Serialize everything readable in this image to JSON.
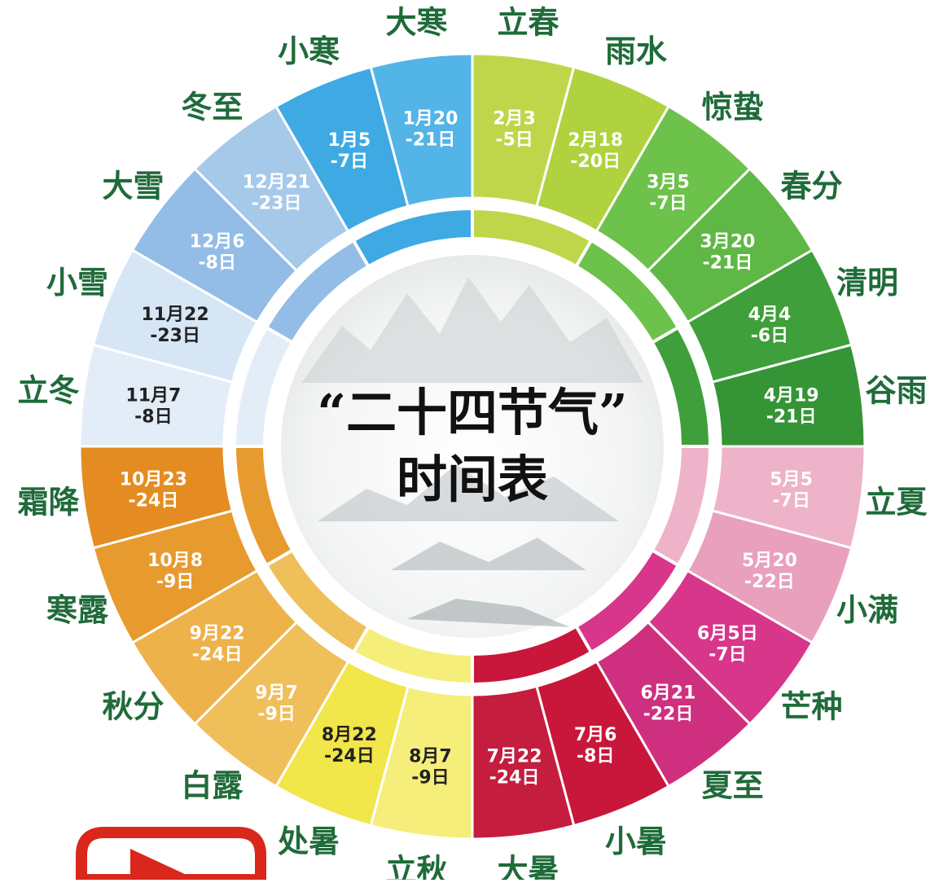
{
  "title": {
    "line1": "“二十四节气”",
    "line2": "时间表"
  },
  "colors": {
    "label_text": "#1f6b3a",
    "title_text": "#111111"
  },
  "logo": {
    "icon": "play-logo-icon",
    "color": "#d9271c"
  },
  "terms": [
    {
      "name": "立春",
      "date_l1": "2月3",
      "date_l2": "-5日",
      "color": "#bfd64a",
      "text_color": "#ffffff"
    },
    {
      "name": "雨水",
      "date_l1": "2月18",
      "date_l2": "-20日",
      "color": "#b0d23e",
      "text_color": "#ffffff"
    },
    {
      "name": "惊蛰",
      "date_l1": "3月5",
      "date_l2": "-7日",
      "color": "#6cc24a",
      "text_color": "#ffffff"
    },
    {
      "name": "春分",
      "date_l1": "3月20",
      "date_l2": "-21日",
      "color": "#5fb845",
      "text_color": "#ffffff"
    },
    {
      "name": "清明",
      "date_l1": "4月4",
      "date_l2": "-6日",
      "color": "#3f9f3a",
      "text_color": "#ffffff"
    },
    {
      "name": "谷雨",
      "date_l1": "4月19",
      "date_l2": "-21日",
      "color": "#359435",
      "text_color": "#ffffff"
    },
    {
      "name": "立夏",
      "date_l1": "5月5",
      "date_l2": "-7日",
      "color": "#eeb3c9",
      "text_color": "#ffffff"
    },
    {
      "name": "小满",
      "date_l1": "5月20",
      "date_l2": "-22日",
      "color": "#e9a0bd",
      "text_color": "#ffffff"
    },
    {
      "name": "芒种",
      "date_l1": "6月5日",
      "date_l2": "-7日",
      "color": "#d8368a",
      "text_color": "#ffffff"
    },
    {
      "name": "夏至",
      "date_l1": "6月21",
      "date_l2": "-22日",
      "color": "#cf2f7f",
      "text_color": "#ffffff"
    },
    {
      "name": "小暑",
      "date_l1": "7月6",
      "date_l2": "-8日",
      "color": "#c8173a",
      "text_color": "#ffffff"
    },
    {
      "name": "大暑",
      "date_l1": "7月22",
      "date_l2": "-24日",
      "color": "#c41d3e",
      "text_color": "#ffffff"
    },
    {
      "name": "立秋",
      "date_l1": "8月7",
      "date_l2": "-9日",
      "color": "#f5ee7a",
      "text_color": "#222222"
    },
    {
      "name": "处暑",
      "date_l1": "8月22",
      "date_l2": "-24日",
      "color": "#f1e64a",
      "text_color": "#222222"
    },
    {
      "name": "白露",
      "date_l1": "9月7",
      "date_l2": "-9日",
      "color": "#efbf5a",
      "text_color": "#ffffff"
    },
    {
      "name": "秋分",
      "date_l1": "9月22",
      "date_l2": "-24日",
      "color": "#edb24a",
      "text_color": "#ffffff"
    },
    {
      "name": "寒露",
      "date_l1": "10月8",
      "date_l2": "-9日",
      "color": "#e79a2e",
      "text_color": "#ffffff"
    },
    {
      "name": "霜降",
      "date_l1": "10月23",
      "date_l2": "-24日",
      "color": "#e48c22",
      "text_color": "#ffffff"
    },
    {
      "name": "立冬",
      "date_l1": "11月7",
      "date_l2": "-8日",
      "color": "#e3edf8",
      "text_color": "#222222"
    },
    {
      "name": "小雪",
      "date_l1": "11月22",
      "date_l2": "-23日",
      "color": "#d6e6f5",
      "text_color": "#222222"
    },
    {
      "name": "大雪",
      "date_l1": "12月6",
      "date_l2": "-8日",
      "color": "#93bde6",
      "text_color": "#ffffff"
    },
    {
      "name": "冬至",
      "date_l1": "12月21",
      "date_l2": "-23日",
      "color": "#a6c9ea",
      "text_color": "#ffffff"
    },
    {
      "name": "小寒",
      "date_l1": "1月5",
      "date_l2": "-7日",
      "color": "#3fa9e3",
      "text_color": "#ffffff"
    },
    {
      "name": "大寒",
      "date_l1": "1月20",
      "date_l2": "-21日",
      "color": "#53b4e7",
      "text_color": "#ffffff"
    }
  ]
}
